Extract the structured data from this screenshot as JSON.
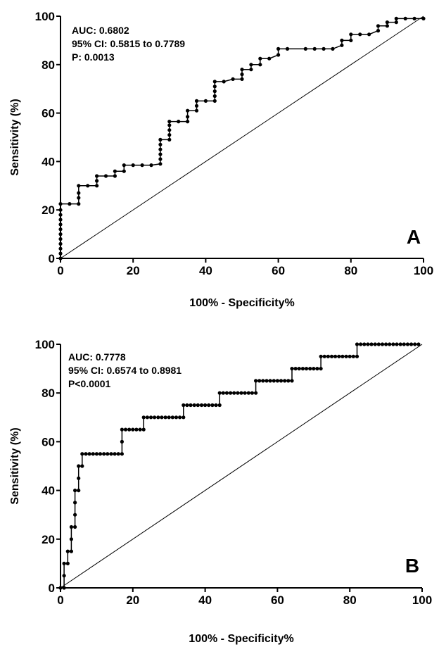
{
  "chart_data": [
    {
      "type": "line",
      "panel_label": "A",
      "xlabel": "100% - Specificity%",
      "ylabel": "Sensitivity (%)",
      "xlim": [
        0,
        100
      ],
      "ylim": [
        0,
        100
      ],
      "x_ticks": [
        "0",
        "20",
        "40",
        "60",
        "80",
        "100"
      ],
      "y_ticks": [
        "0",
        "20",
        "40",
        "60",
        "80",
        "100"
      ],
      "annotations": [
        "AUC: 0.6802",
        "95% CI: 0.5815 to 0.7789",
        "P: 0.0013"
      ],
      "reference_line": [
        [
          0,
          0
        ],
        [
          100,
          100
        ]
      ],
      "series": [
        {
          "points": [
            [
              0,
              0
            ],
            [
              0,
              2
            ],
            [
              0,
              4
            ],
            [
              0,
              6
            ],
            [
              0,
              8
            ],
            [
              0,
              10
            ],
            [
              0,
              12
            ],
            [
              0,
              14
            ],
            [
              0,
              16
            ],
            [
              0,
              18
            ],
            [
              0,
              20
            ],
            [
              0,
              22.5
            ],
            [
              2.5,
              22.5
            ],
            [
              5,
              22.5
            ],
            [
              5,
              25
            ],
            [
              5,
              27
            ],
            [
              5,
              30
            ],
            [
              7.5,
              30
            ],
            [
              10,
              30
            ],
            [
              10,
              32
            ],
            [
              10,
              34
            ],
            [
              12.5,
              34
            ],
            [
              15,
              34
            ],
            [
              15,
              36
            ],
            [
              17.5,
              36
            ],
            [
              17.5,
              38.5
            ],
            [
              20,
              38.5
            ],
            [
              22.5,
              38.5
            ],
            [
              25,
              38.5
            ],
            [
              27.5,
              39
            ],
            [
              27.5,
              41
            ],
            [
              27.5,
              43
            ],
            [
              27.5,
              45
            ],
            [
              27.5,
              47
            ],
            [
              27.5,
              49
            ],
            [
              30,
              49
            ],
            [
              30,
              51
            ],
            [
              30,
              53
            ],
            [
              30,
              55
            ],
            [
              30,
              56.5
            ],
            [
              32.5,
              56.5
            ],
            [
              35,
              56.5
            ],
            [
              35,
              58.5
            ],
            [
              35,
              61
            ],
            [
              37.5,
              61
            ],
            [
              37.5,
              63
            ],
            [
              37.5,
              65
            ],
            [
              40,
              65
            ],
            [
              42.5,
              65
            ],
            [
              42.5,
              67
            ],
            [
              42.5,
              69
            ],
            [
              42.5,
              71
            ],
            [
              42.5,
              73
            ],
            [
              45,
              73
            ],
            [
              47.5,
              74
            ],
            [
              50,
              74
            ],
            [
              50,
              76
            ],
            [
              50,
              78
            ],
            [
              52.5,
              78
            ],
            [
              52.5,
              80
            ],
            [
              55,
              80
            ],
            [
              55,
              82.5
            ],
            [
              57.5,
              82.5
            ],
            [
              60,
              84
            ],
            [
              60,
              86.5
            ],
            [
              62.5,
              86.5
            ],
            [
              67.5,
              86.5
            ],
            [
              70,
              86.5
            ],
            [
              72.5,
              86.5
            ],
            [
              75,
              86.5
            ],
            [
              77.5,
              88
            ],
            [
              77.5,
              90
            ],
            [
              80,
              90
            ],
            [
              80,
              92.5
            ],
            [
              82.5,
              92.5
            ],
            [
              85,
              92.5
            ],
            [
              87.5,
              94
            ],
            [
              87.5,
              96
            ],
            [
              90,
              96
            ],
            [
              90,
              97.5
            ],
            [
              92.5,
              97.5
            ],
            [
              92.5,
              99
            ],
            [
              95,
              99
            ],
            [
              97.5,
              99
            ],
            [
              100,
              99
            ]
          ]
        }
      ]
    },
    {
      "type": "line",
      "panel_label": "B",
      "xlabel": "100% - Specificity%",
      "ylabel": "Sensitivity (%)",
      "xlim": [
        0,
        100
      ],
      "ylim": [
        0,
        100
      ],
      "x_ticks": [
        "0",
        "20",
        "40",
        "60",
        "80",
        "100"
      ],
      "y_ticks": [
        "0",
        "20",
        "40",
        "60",
        "80",
        "100"
      ],
      "annotations": [
        "AUC: 0.7778",
        "95% CI: 0.6574 to 0.8981",
        "P<0.0001"
      ],
      "reference_line": [
        [
          0,
          0
        ],
        [
          100,
          100
        ]
      ],
      "series": [
        {
          "points": [
            [
              0,
              0
            ],
            [
              1,
              0
            ],
            [
              1,
              5
            ],
            [
              1,
              10
            ],
            [
              2,
              10
            ],
            [
              2,
              15
            ],
            [
              3,
              15
            ],
            [
              3,
              20
            ],
            [
              3,
              25
            ],
            [
              4,
              25
            ],
            [
              4,
              30
            ],
            [
              4,
              35
            ],
            [
              4,
              40
            ],
            [
              5,
              40
            ],
            [
              5,
              45
            ],
            [
              5,
              50
            ],
            [
              6,
              50
            ],
            [
              6,
              55
            ],
            [
              7,
              55
            ],
            [
              8,
              55
            ],
            [
              9,
              55
            ],
            [
              10,
              55
            ],
            [
              11,
              55
            ],
            [
              12,
              55
            ],
            [
              13,
              55
            ],
            [
              14,
              55
            ],
            [
              15,
              55
            ],
            [
              16,
              55
            ],
            [
              17,
              55
            ],
            [
              17,
              60
            ],
            [
              17,
              65
            ],
            [
              18,
              65
            ],
            [
              19,
              65
            ],
            [
              20,
              65
            ],
            [
              21,
              65
            ],
            [
              22,
              65
            ],
            [
              23,
              65
            ],
            [
              23,
              70
            ],
            [
              24,
              70
            ],
            [
              25,
              70
            ],
            [
              26,
              70
            ],
            [
              27,
              70
            ],
            [
              28,
              70
            ],
            [
              29,
              70
            ],
            [
              30,
              70
            ],
            [
              31,
              70
            ],
            [
              32,
              70
            ],
            [
              33,
              70
            ],
            [
              34,
              70
            ],
            [
              34,
              75
            ],
            [
              35,
              75
            ],
            [
              36,
              75
            ],
            [
              37,
              75
            ],
            [
              38,
              75
            ],
            [
              39,
              75
            ],
            [
              40,
              75
            ],
            [
              41,
              75
            ],
            [
              42,
              75
            ],
            [
              43,
              75
            ],
            [
              44,
              75
            ],
            [
              44,
              80
            ],
            [
              45,
              80
            ],
            [
              46,
              80
            ],
            [
              47,
              80
            ],
            [
              48,
              80
            ],
            [
              49,
              80
            ],
            [
              50,
              80
            ],
            [
              51,
              80
            ],
            [
              52,
              80
            ],
            [
              53,
              80
            ],
            [
              54,
              80
            ],
            [
              54,
              85
            ],
            [
              55,
              85
            ],
            [
              56,
              85
            ],
            [
              57,
              85
            ],
            [
              58,
              85
            ],
            [
              59,
              85
            ],
            [
              60,
              85
            ],
            [
              61,
              85
            ],
            [
              62,
              85
            ],
            [
              63,
              85
            ],
            [
              64,
              85
            ],
            [
              64,
              90
            ],
            [
              65,
              90
            ],
            [
              66,
              90
            ],
            [
              67,
              90
            ],
            [
              68,
              90
            ],
            [
              69,
              90
            ],
            [
              70,
              90
            ],
            [
              71,
              90
            ],
            [
              72,
              90
            ],
            [
              72,
              95
            ],
            [
              73,
              95
            ],
            [
              74,
              95
            ],
            [
              75,
              95
            ],
            [
              76,
              95
            ],
            [
              77,
              95
            ],
            [
              78,
              95
            ],
            [
              79,
              95
            ],
            [
              80,
              95
            ],
            [
              81,
              95
            ],
            [
              82,
              95
            ],
            [
              82,
              100
            ],
            [
              83,
              100
            ],
            [
              84,
              100
            ],
            [
              85,
              100
            ],
            [
              86,
              100
            ],
            [
              87,
              100
            ],
            [
              88,
              100
            ],
            [
              89,
              100
            ],
            [
              90,
              100
            ],
            [
              91,
              100
            ],
            [
              92,
              100
            ],
            [
              93,
              100
            ],
            [
              94,
              100
            ],
            [
              95,
              100
            ],
            [
              96,
              100
            ],
            [
              97,
              100
            ],
            [
              98,
              100
            ],
            [
              99,
              100
            ]
          ]
        }
      ]
    }
  ]
}
